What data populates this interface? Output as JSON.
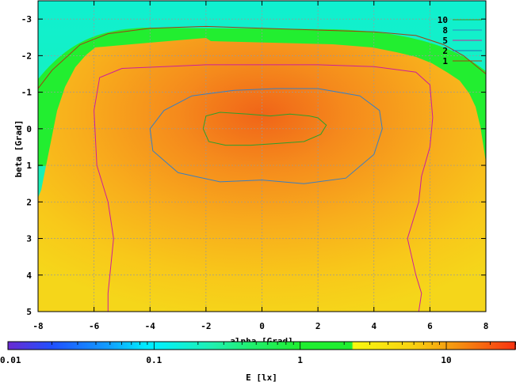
{
  "chart_data": {
    "type": "heatmap",
    "xlabel": "alpha [Grad]",
    "ylabel": "beta [Grad]",
    "xlim": [
      -8,
      8
    ],
    "ylim": [
      5,
      -3.5
    ],
    "x_ticks": [
      "-8",
      "-6",
      "-4",
      "-2",
      "0",
      "2",
      "4",
      "6",
      "8"
    ],
    "y_ticks": [
      "-3",
      "-2",
      "-1",
      "0",
      "1",
      "2",
      "3",
      "4",
      "5"
    ],
    "grid": true,
    "colorbar": {
      "label": "E [lx]",
      "scale": "log",
      "range": [
        0.01,
        30
      ],
      "tick_labels": [
        "0.01",
        "0.1",
        "1",
        "10"
      ]
    },
    "contours": {
      "legend_position": "top-right",
      "levels": [
        {
          "label": "10",
          "value": 10,
          "color": "#2ca02c",
          "points": [
            [
              -2.1,
              0.0
            ],
            [
              -2.0,
              -0.35
            ],
            [
              -1.5,
              -0.45
            ],
            [
              -0.5,
              -0.4
            ],
            [
              0.3,
              -0.35
            ],
            [
              1.0,
              -0.4
            ],
            [
              1.7,
              -0.35
            ],
            [
              2.0,
              -0.3
            ],
            [
              2.3,
              -0.1
            ],
            [
              2.1,
              0.15
            ],
            [
              1.5,
              0.35
            ],
            [
              0.6,
              0.4
            ],
            [
              -0.4,
              0.45
            ],
            [
              -1.3,
              0.45
            ],
            [
              -1.9,
              0.35
            ],
            [
              -2.1,
              0.0
            ]
          ]
        },
        {
          "label": "8",
          "value": 8,
          "color": "#3a7fc1",
          "points": [
            [
              -4.0,
              0.0
            ],
            [
              -3.5,
              -0.5
            ],
            [
              -2.5,
              -0.9
            ],
            [
              -1.0,
              -1.05
            ],
            [
              0.5,
              -1.1
            ],
            [
              2.0,
              -1.1
            ],
            [
              3.5,
              -0.9
            ],
            [
              4.2,
              -0.5
            ],
            [
              4.3,
              0.0
            ],
            [
              4.0,
              0.7
            ],
            [
              3.0,
              1.35
            ],
            [
              1.5,
              1.5
            ],
            [
              0.0,
              1.4
            ],
            [
              -1.5,
              1.45
            ],
            [
              -3.0,
              1.2
            ],
            [
              -3.9,
              0.6
            ],
            [
              -4.0,
              0.0
            ]
          ]
        },
        {
          "label": "5",
          "value": 5,
          "color": "#cc1f9a",
          "points": [
            [
              -5.5,
              5.0
            ],
            [
              -5.5,
              4.5
            ],
            [
              -5.3,
              3.0
            ],
            [
              -5.5,
              2.0
            ],
            [
              -5.9,
              1.0
            ],
            [
              -6.0,
              -0.5
            ],
            [
              -5.8,
              -1.4
            ],
            [
              -5.0,
              -1.65
            ],
            [
              -3.5,
              -1.7
            ],
            [
              -2.0,
              -1.75
            ],
            [
              0.0,
              -1.75
            ],
            [
              2.0,
              -1.75
            ],
            [
              4.0,
              -1.7
            ],
            [
              5.5,
              -1.55
            ],
            [
              6.0,
              -1.2
            ],
            [
              6.1,
              -0.3
            ],
            [
              6.0,
              0.5
            ],
            [
              5.7,
              1.3
            ],
            [
              5.6,
              2.0
            ],
            [
              5.2,
              3.0
            ],
            [
              5.5,
              4.0
            ],
            [
              5.7,
              4.5
            ],
            [
              5.6,
              5.0
            ]
          ]
        },
        {
          "label": "2",
          "value": 2,
          "color": "#1f6fb5",
          "points": []
        },
        {
          "label": "1",
          "value": 1,
          "color": "#a04010",
          "points": [
            [
              -8.0,
              -1.1
            ],
            [
              -7.5,
              -1.6
            ],
            [
              -6.5,
              -2.3
            ],
            [
              -5.5,
              -2.6
            ],
            [
              -4.0,
              -2.75
            ],
            [
              -2.0,
              -2.8
            ],
            [
              0.0,
              -2.75
            ],
            [
              2.0,
              -2.7
            ],
            [
              4.0,
              -2.65
            ],
            [
              5.5,
              -2.55
            ],
            [
              6.5,
              -2.3
            ],
            [
              7.2,
              -2.0
            ],
            [
              8.0,
              -1.5
            ]
          ]
        }
      ]
    }
  }
}
